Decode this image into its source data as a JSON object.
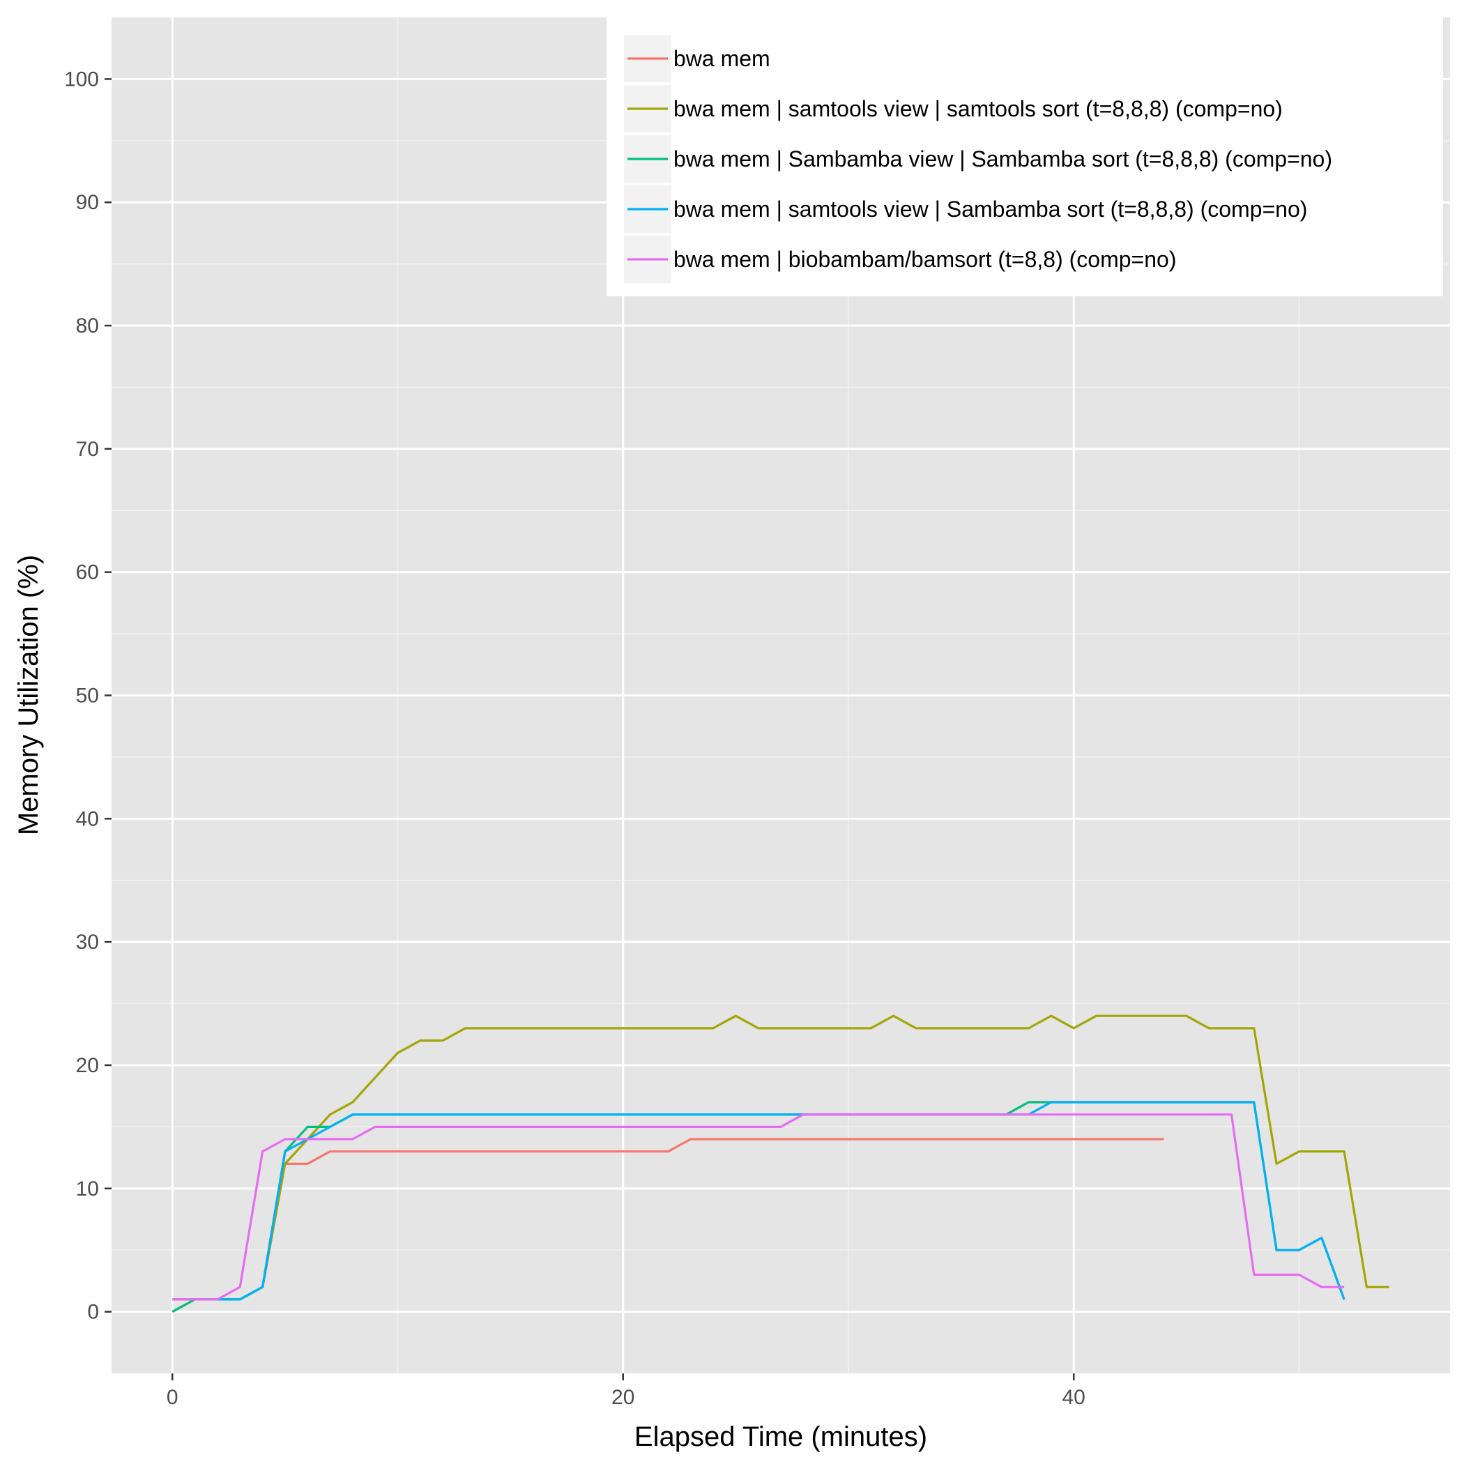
{
  "chart_data": {
    "type": "line",
    "xlabel": "Elapsed Time (minutes)",
    "ylabel": "Memory Utilization (%)",
    "xlim": [
      -2.7,
      56.7
    ],
    "ylim": [
      -5,
      105
    ],
    "x_ticks": [
      0,
      20,
      40
    ],
    "y_ticks": [
      0,
      10,
      20,
      30,
      40,
      50,
      60,
      70,
      80,
      90,
      100
    ],
    "grid": true,
    "legend_position": "top-right",
    "series": [
      {
        "name": "bwa mem",
        "color": "#F8766D",
        "x": [
          0,
          1,
          2,
          3,
          4,
          5,
          6,
          7,
          8,
          9,
          10,
          11,
          12,
          13,
          14,
          15,
          16,
          17,
          18,
          19,
          20,
          21,
          22,
          23,
          24,
          25,
          26,
          27,
          28,
          29,
          30,
          31,
          32,
          33,
          34,
          35,
          36,
          37,
          38,
          39,
          40,
          41,
          42,
          43,
          44
        ],
        "y": [
          1,
          1,
          1,
          1,
          2,
          12,
          12,
          13,
          13,
          13,
          13,
          13,
          13,
          13,
          13,
          13,
          13,
          13,
          13,
          13,
          13,
          13,
          13,
          14,
          14,
          14,
          14,
          14,
          14,
          14,
          14,
          14,
          14,
          14,
          14,
          14,
          14,
          14,
          14,
          14,
          14,
          14,
          14,
          14,
          14
        ]
      },
      {
        "name": "bwa mem | samtools view | samtools sort (t=8,8,8) (comp=no)",
        "color": "#A3A500",
        "x": [
          0,
          1,
          2,
          3,
          4,
          5,
          6,
          7,
          8,
          9,
          10,
          11,
          12,
          13,
          14,
          15,
          16,
          17,
          18,
          19,
          20,
          21,
          22,
          23,
          24,
          25,
          26,
          27,
          28,
          29,
          30,
          31,
          32,
          33,
          34,
          35,
          36,
          37,
          38,
          39,
          40,
          41,
          42,
          43,
          44,
          45,
          46,
          47,
          48,
          49,
          50,
          51,
          52,
          53,
          54
        ],
        "y": [
          0,
          1,
          1,
          1,
          2,
          12,
          14,
          16,
          17,
          19,
          21,
          22,
          22,
          23,
          23,
          23,
          23,
          23,
          23,
          23,
          23,
          23,
          23,
          23,
          23,
          24,
          23,
          23,
          23,
          23,
          23,
          23,
          24,
          23,
          23,
          23,
          23,
          23,
          23,
          24,
          23,
          24,
          24,
          24,
          24,
          24,
          23,
          23,
          23,
          12,
          13,
          13,
          13,
          2,
          2
        ]
      },
      {
        "name": "bwa mem | Sambamba view | Sambamba sort (t=8,8,8) (comp=no)",
        "color": "#00BF7D",
        "x": [
          0,
          1,
          2,
          3,
          4,
          5,
          6,
          7,
          8,
          9,
          10,
          11,
          12,
          13,
          14,
          15,
          16,
          17,
          18,
          19,
          20,
          21,
          22,
          23,
          24,
          25,
          26,
          27,
          28,
          29,
          30,
          31,
          32,
          33,
          34,
          35,
          36,
          37,
          38,
          39,
          40,
          41,
          42,
          43,
          44,
          45,
          46,
          47,
          48,
          49,
          50,
          51,
          52
        ],
        "y": [
          0,
          1,
          1,
          1,
          2,
          13,
          15,
          15,
          16,
          16,
          16,
          16,
          16,
          16,
          16,
          16,
          16,
          16,
          16,
          16,
          16,
          16,
          16,
          16,
          16,
          16,
          16,
          16,
          16,
          16,
          16,
          16,
          16,
          16,
          16,
          16,
          16,
          16,
          17,
          17,
          17,
          17,
          17,
          17,
          17,
          17,
          17,
          17,
          17,
          5,
          5,
          6,
          1
        ]
      },
      {
        "name": "bwa mem | samtools view | Sambamba sort (t=8,8,8) (comp=no)",
        "color": "#00B0F6",
        "x": [
          0,
          1,
          2,
          3,
          4,
          5,
          6,
          7,
          8,
          9,
          10,
          11,
          12,
          13,
          14,
          15,
          16,
          17,
          18,
          19,
          20,
          21,
          22,
          23,
          24,
          25,
          26,
          27,
          28,
          29,
          30,
          31,
          32,
          33,
          34,
          35,
          36,
          37,
          38,
          39,
          40,
          41,
          42,
          43,
          44,
          45,
          46,
          47,
          48,
          49,
          50,
          51,
          52
        ],
        "y": [
          1,
          1,
          1,
          1,
          2,
          13,
          14,
          15,
          16,
          16,
          16,
          16,
          16,
          16,
          16,
          16,
          16,
          16,
          16,
          16,
          16,
          16,
          16,
          16,
          16,
          16,
          16,
          16,
          16,
          16,
          16,
          16,
          16,
          16,
          16,
          16,
          16,
          16,
          16,
          17,
          17,
          17,
          17,
          17,
          17,
          17,
          17,
          17,
          17,
          5,
          5,
          6,
          1
        ]
      },
      {
        "name": "bwa mem | biobambam/bamsort (t=8,8) (comp=no)",
        "color": "#E76BF3",
        "x": [
          0,
          1,
          2,
          3,
          4,
          5,
          6,
          7,
          8,
          9,
          10,
          11,
          12,
          13,
          14,
          15,
          16,
          17,
          18,
          19,
          20,
          21,
          22,
          23,
          24,
          25,
          26,
          27,
          28,
          29,
          30,
          31,
          32,
          33,
          34,
          35,
          36,
          37,
          38,
          39,
          40,
          41,
          42,
          43,
          44,
          45,
          46,
          47,
          48,
          49,
          50,
          51,
          52
        ],
        "y": [
          1,
          1,
          1,
          2,
          13,
          14,
          14,
          14,
          14,
          15,
          15,
          15,
          15,
          15,
          15,
          15,
          15,
          15,
          15,
          15,
          15,
          15,
          15,
          15,
          15,
          15,
          15,
          15,
          16,
          16,
          16,
          16,
          16,
          16,
          16,
          16,
          16,
          16,
          16,
          16,
          16,
          16,
          16,
          16,
          16,
          16,
          16,
          16,
          3,
          3,
          3,
          2,
          2
        ]
      }
    ]
  }
}
